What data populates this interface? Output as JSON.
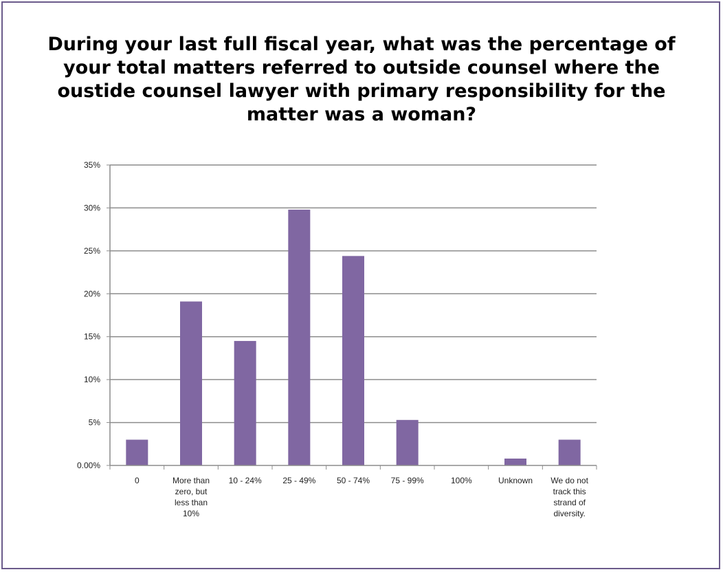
{
  "chart_data": {
    "type": "bar",
    "title": "During your last full fiscal year, what was the percentage of your total matters referred to outside counsel where the oustide counsel lawyer with primary responsibility for the matter was a woman?",
    "categories": [
      "0",
      "More than zero, but less than 10%",
      "10 - 24%",
      "25 - 49%",
      "50 - 74%",
      "75 - 99%",
      "100%",
      "Unknown",
      "We do not track this strand of diversity."
    ],
    "category_lines": [
      [
        "0"
      ],
      [
        "More than",
        "zero, but",
        "less than",
        "10%"
      ],
      [
        "10 - 24%"
      ],
      [
        "25 - 49%"
      ],
      [
        "50 - 74%"
      ],
      [
        "75 - 99%"
      ],
      [
        "100%"
      ],
      [
        "Unknown"
      ],
      [
        "We do not",
        "track this",
        "strand of",
        "diversity."
      ]
    ],
    "values": [
      3.0,
      19.1,
      14.5,
      29.8,
      24.4,
      5.3,
      0,
      0.8,
      3.0
    ],
    "ylim": [
      0,
      35
    ],
    "yticks": [
      0,
      5,
      10,
      15,
      20,
      25,
      30,
      35
    ],
    "ytick_labels": [
      "0.00%",
      "5%",
      "10%",
      "15%",
      "20%",
      "25%",
      "30%",
      "35%"
    ],
    "xlabel": "",
    "ylabel": "",
    "grid": true,
    "legend": "none",
    "bar_color": "#8067a2",
    "gridline_color": "#8c8c8c",
    "frame_color": "#6a5a8a"
  }
}
